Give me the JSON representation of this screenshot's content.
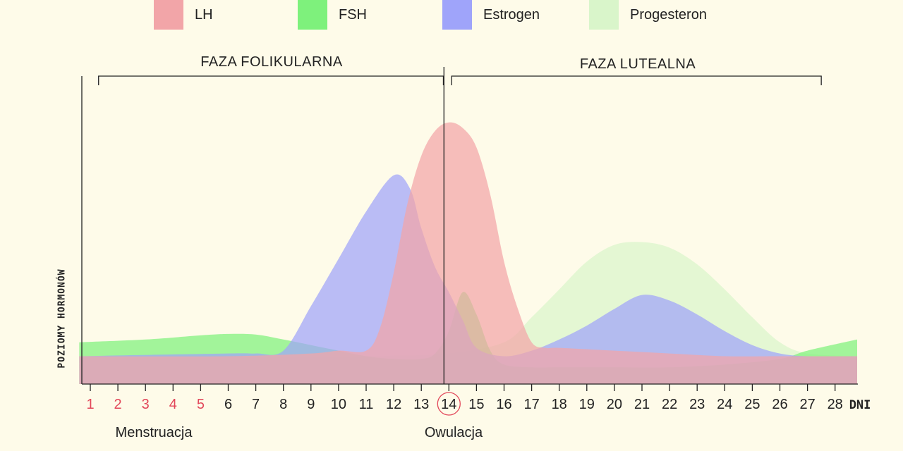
{
  "chart_data": {
    "type": "area",
    "phases": [
      {
        "label": "FAZA FOLIKULARNA",
        "start_day": 1.3,
        "end_day": 13.8
      },
      {
        "label": "FAZA LUTEALNA",
        "start_day": 14.1,
        "end_day": 27.5
      }
    ],
    "ylabel": "POZIOMY HORMONÓW",
    "xlabel": "DNI",
    "x_ticks": [
      1,
      2,
      3,
      4,
      5,
      6,
      7,
      8,
      9,
      10,
      11,
      12,
      13,
      14,
      15,
      16,
      17,
      18,
      19,
      20,
      21,
      22,
      23,
      24,
      25,
      26,
      27,
      28
    ],
    "highlighted_days": [
      1,
      2,
      3,
      4,
      5
    ],
    "highlight_color": "#e2475a",
    "circled_day": 14,
    "ovulation_day": 14,
    "ylim": [
      0,
      100
    ],
    "bottom_labels": [
      {
        "text": "Menstruacja",
        "day": 3
      },
      {
        "text": "Owulacja",
        "day": 14.1
      }
    ],
    "series": [
      {
        "name": "Progesteron",
        "color": "#d9f5ca",
        "x": [
          0.6,
          10,
          12,
          14,
          16,
          17,
          18,
          19,
          20,
          21,
          22,
          23,
          24,
          25,
          26,
          27,
          28.8
        ],
        "values": [
          10,
          10,
          10.2,
          11,
          15,
          24,
          34,
          44,
          50,
          51,
          49,
          43,
          34,
          24,
          15,
          11,
          10
        ]
      },
      {
        "name": "FSH",
        "color": "#7ef17c",
        "x": [
          0.6,
          3,
          5,
          6,
          7,
          8,
          9,
          10,
          11,
          12,
          13,
          13.5,
          14,
          14.5,
          15,
          15.5,
          16,
          17,
          18,
          20,
          22,
          24,
          26,
          27,
          28.8
        ],
        "values": [
          15,
          16,
          17.5,
          18,
          17.8,
          16,
          14,
          12,
          10,
          9,
          9,
          11,
          19,
          33,
          25,
          12,
          7,
          6,
          6,
          6,
          6,
          7,
          9,
          12,
          16
        ]
      },
      {
        "name": "Estrogen",
        "color": "#9fa4fa",
        "x": [
          0.6,
          6,
          7,
          8,
          9,
          10,
          11,
          12,
          12.6,
          13,
          13.5,
          14,
          14.5,
          15,
          16,
          17,
          18,
          19,
          20,
          21,
          22,
          23,
          24,
          25,
          26,
          27,
          28.8
        ],
        "values": [
          10,
          11,
          11,
          12,
          28,
          45,
          62,
          75,
          70,
          56,
          42,
          33,
          23,
          13,
          10,
          12,
          16,
          21,
          27,
          32,
          30,
          25,
          19,
          14,
          11,
          10,
          10
        ]
      },
      {
        "name": "LH",
        "color": "#f2a5a8",
        "x": [
          0.6,
          6,
          9,
          10,
          11,
          11.5,
          12,
          12.5,
          13,
          13.5,
          14,
          14.5,
          15,
          15.5,
          16,
          16.5,
          17,
          17.5,
          18,
          20,
          22,
          24,
          26,
          28.8
        ],
        "values": [
          10,
          10,
          11,
          12,
          12,
          20,
          40,
          65,
          82,
          91,
          94,
          92,
          85,
          68,
          44,
          27,
          15,
          13,
          13,
          12,
          11,
          10,
          10,
          10
        ]
      }
    ]
  }
}
